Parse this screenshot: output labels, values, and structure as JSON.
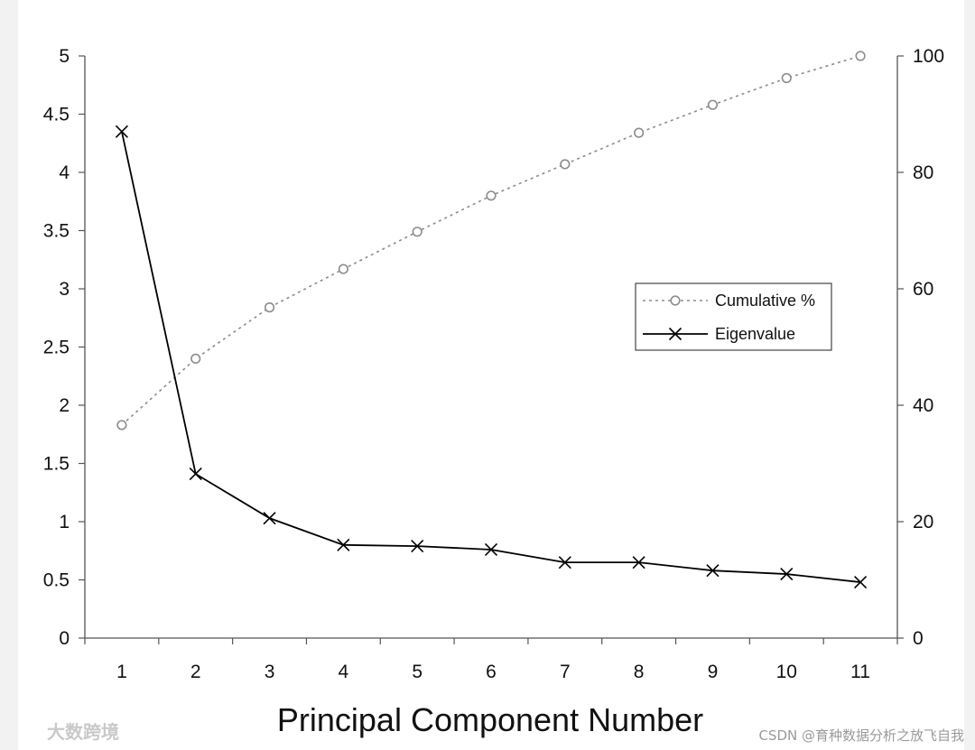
{
  "chart_data": {
    "type": "line",
    "xlabel": "Principal Component Number",
    "x": [
      1,
      2,
      3,
      4,
      5,
      6,
      7,
      8,
      9,
      10,
      11
    ],
    "ylim_left": [
      0,
      5
    ],
    "ylim_right": [
      0,
      100
    ],
    "yticks_left": [
      "0",
      "0.5",
      "1",
      "1.5",
      "2",
      "2.5",
      "3",
      "3.5",
      "4",
      "4.5",
      "5"
    ],
    "yticks_right": [
      "0",
      "20",
      "40",
      "60",
      "80",
      "100"
    ],
    "legend_position": "middle-right",
    "series": [
      {
        "name": "Cumulative %",
        "axis": "right",
        "style": "dotted-circle",
        "color": "#8c8c8c",
        "values": [
          36.6,
          48.0,
          56.8,
          63.4,
          69.8,
          76.0,
          81.4,
          86.8,
          91.6,
          96.2,
          100.0
        ]
      },
      {
        "name": "Eigenvalue",
        "axis": "left",
        "style": "solid-x",
        "color": "#000000",
        "values": [
          4.35,
          1.41,
          1.03,
          0.8,
          0.79,
          0.76,
          0.65,
          0.65,
          0.58,
          0.55,
          0.48
        ]
      }
    ]
  },
  "watermarks": {
    "left": "大数跨境",
    "right": "CSDN @育种数据分析之放飞自我"
  }
}
